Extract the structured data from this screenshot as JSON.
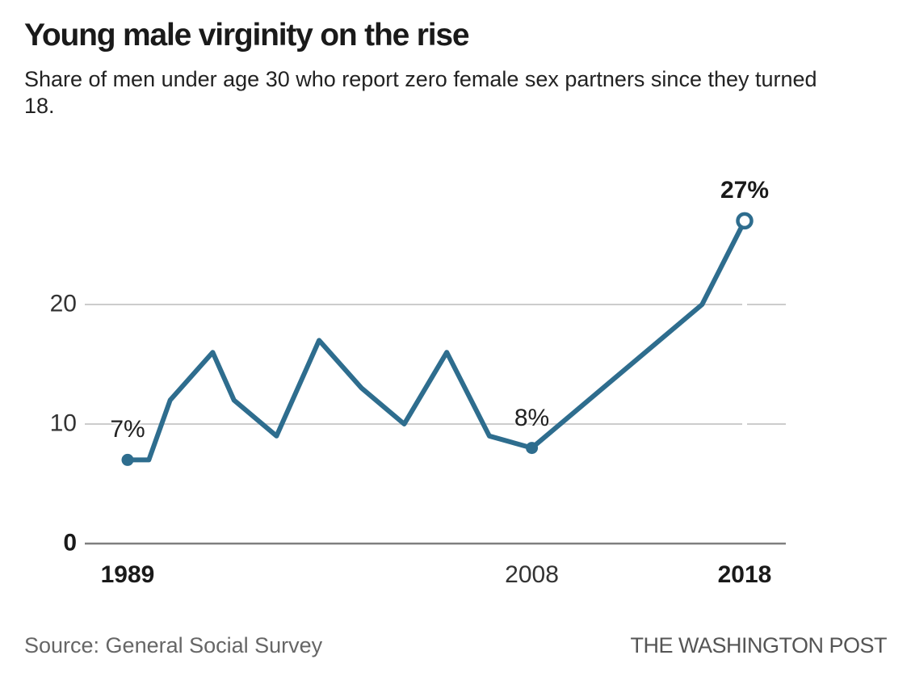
{
  "header": {
    "title": "Young male virginity on the rise",
    "subtitle": "Share of men under age 30 who report zero female sex partners since they turned 18."
  },
  "footer": {
    "source": "Source: General Social Survey",
    "brand": "THE WASHINGTON POST"
  },
  "colors": {
    "line": "#2e6d8e",
    "grid": "#cccccc",
    "axis": "#7f7f7f",
    "title_text": "#1a1a1a",
    "body_text": "#222222",
    "tick_text": "#333333",
    "footer_text": "#666666"
  },
  "chart_data": {
    "type": "line",
    "title": "Young male virginity on the rise",
    "subtitle": "Share of men under age 30 who report zero female sex partners since they turned 18.",
    "xlabel": "",
    "ylabel": "",
    "x": [
      1989,
      1990,
      1991,
      1993,
      1994,
      1996,
      1998,
      2000,
      2002,
      2004,
      2006,
      2008,
      2016,
      2018
    ],
    "values": [
      7,
      7,
      12,
      16,
      12,
      9,
      17,
      13,
      10,
      16,
      9,
      8,
      20,
      27
    ],
    "xlim": [
      1987,
      2020
    ],
    "ylim": [
      0,
      30
    ],
    "grid": true,
    "legend": false,
    "line_color": "#2e6d8e",
    "y_ticks": [
      {
        "label": "20",
        "value": 20,
        "bold": false
      },
      {
        "label": "10",
        "value": 10,
        "bold": false
      },
      {
        "label": "0",
        "value": 0,
        "bold": true
      }
    ],
    "x_ticks": [
      {
        "label": "1989",
        "year": 1989,
        "bold": true
      },
      {
        "label": "2008",
        "year": 2008,
        "bold": false
      },
      {
        "label": "2018",
        "year": 2018,
        "bold": true
      }
    ],
    "annotations": [
      {
        "label": "7%",
        "year": 1989,
        "value": 7,
        "bold": false,
        "marker": "filled"
      },
      {
        "label": "8%",
        "year": 2008,
        "value": 8,
        "bold": false,
        "marker": "filled"
      },
      {
        "label": "27%",
        "year": 2018,
        "value": 27,
        "bold": true,
        "marker": "open"
      }
    ]
  }
}
